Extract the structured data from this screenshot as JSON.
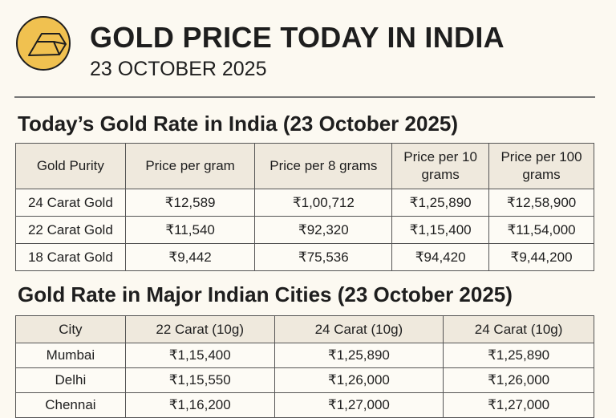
{
  "header": {
    "title": "GOLD PRICE TODAY IN INDIA",
    "subtitle": "23 OCTOBER 2025",
    "icon": "gold-bar-icon",
    "accent": "#f0c150"
  },
  "table1": {
    "heading": "Today’s Gold Rate in India (23 October 2025)",
    "columns": [
      "Gold Purity",
      "Price per gram",
      "Price per 8 grams",
      "Price per 10 grams",
      "Price per 100 grams"
    ],
    "rows": [
      [
        "24 Carat Gold",
        "₹12,589",
        "₹1,00,712",
        "₹1,25,890",
        "₹12,58,900"
      ],
      [
        "22 Carat Gold",
        "₹11,540",
        "₹92,320",
        "₹1,15,400",
        "₹11,54,000"
      ],
      [
        "18 Carat Gold",
        "₹9,442",
        "₹75,536",
        "₹94,420",
        "₹9,44,200"
      ]
    ]
  },
  "table2": {
    "heading": "Gold Rate in Major Indian Cities (23 October 2025)",
    "columns": [
      "City",
      "22 Carat (10g)",
      "24 Carat (10g)",
      "24 Carat (10g)"
    ],
    "rows": [
      [
        "Mumbai",
        "₹1,15,400",
        "₹1,25,890",
        "₹1,25,890"
      ],
      [
        "Delhi",
        "₹1,15,550",
        "₹1,26,000",
        "₹1,26,000"
      ],
      [
        "Chennai",
        "₹1,16,200",
        "₹1,27,000",
        "₹1,27,000"
      ]
    ]
  }
}
